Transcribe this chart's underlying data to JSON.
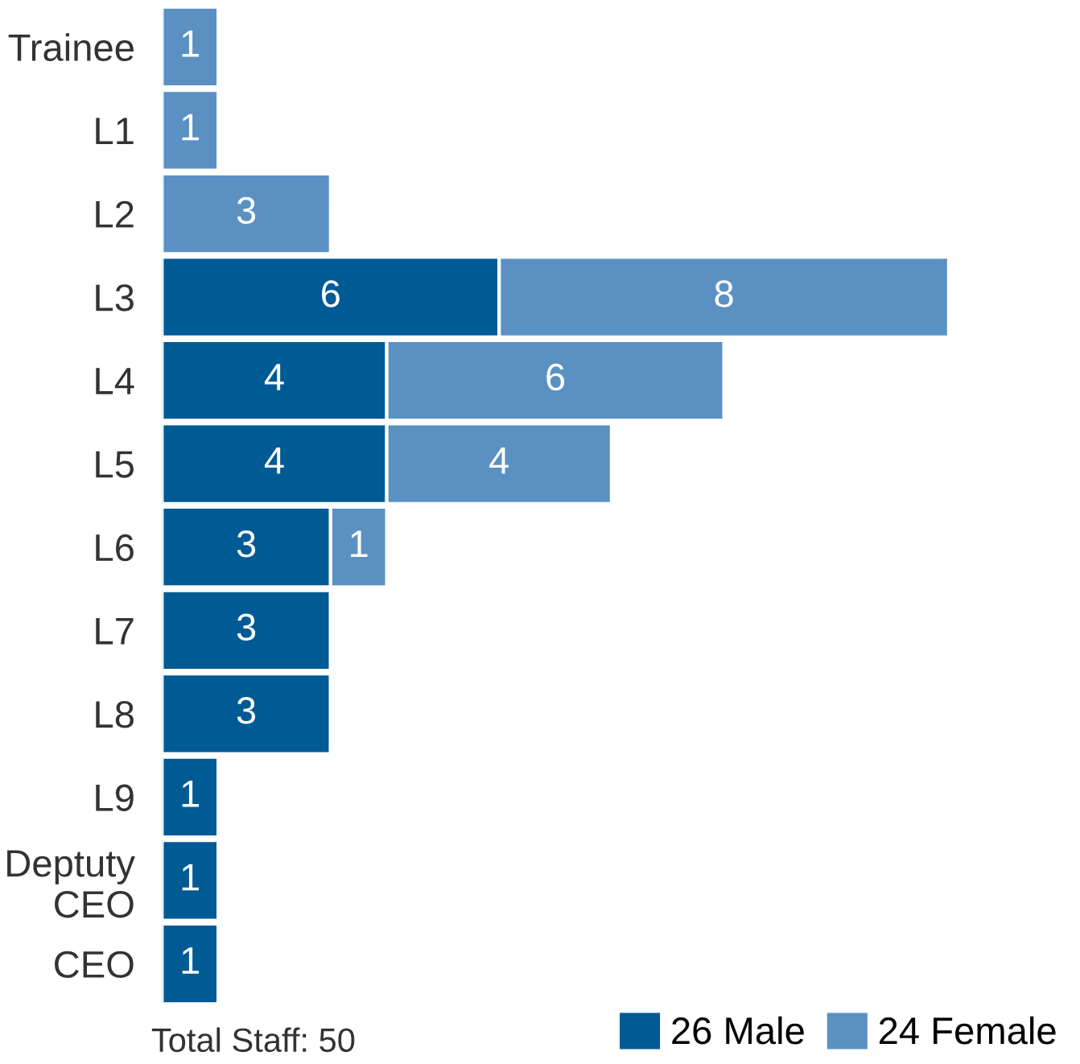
{
  "chart_data": {
    "type": "bar",
    "orientation": "horizontal",
    "stacked": true,
    "data_labels": true,
    "legend": "bottom right",
    "categories": [
      "Trainee",
      "L1",
      "L2",
      "L3",
      "L4",
      "L5",
      "L6",
      "L7",
      "L8",
      "L9",
      "Deptuty\nCEO",
      "CEO"
    ],
    "series": [
      {
        "name": "26 Male",
        "color": "#005a94",
        "values": [
          null,
          null,
          null,
          6,
          4,
          4,
          3,
          3,
          3,
          1,
          1,
          1
        ]
      },
      {
        "name": "24 Female",
        "color": "#5a91c2",
        "values": [
          1,
          1,
          3,
          8,
          6,
          4,
          1,
          null,
          null,
          null,
          null,
          null
        ]
      }
    ],
    "annotations": [
      "Total Staff: 50"
    ]
  }
}
